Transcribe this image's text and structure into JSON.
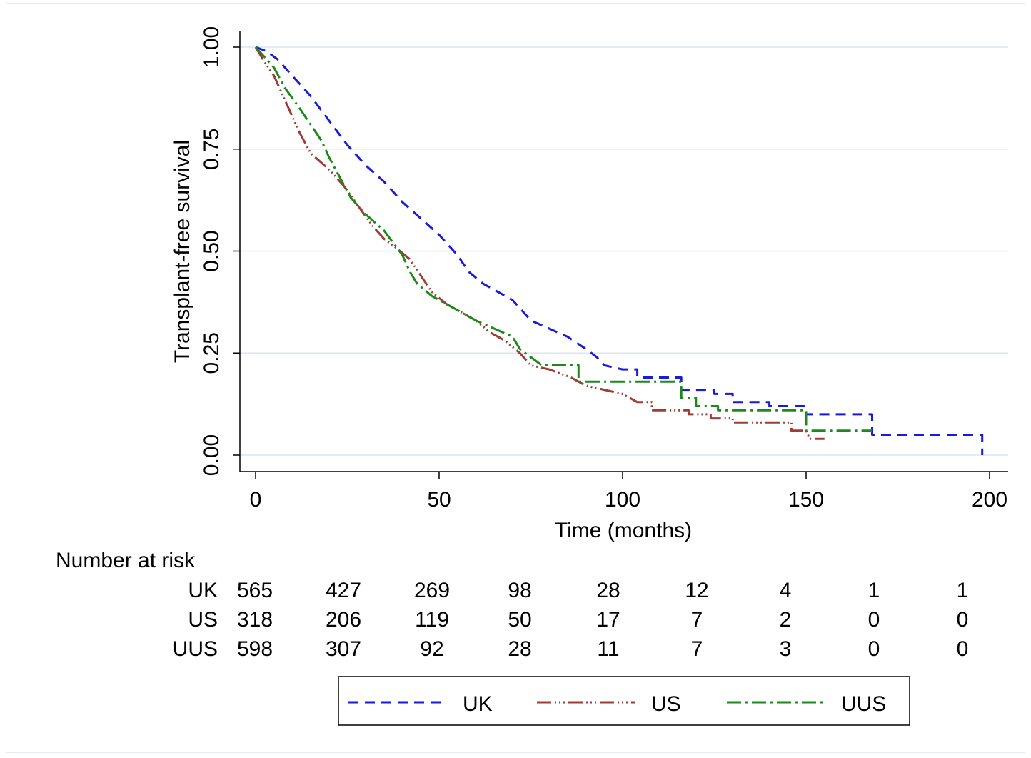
{
  "chart_data": {
    "type": "line",
    "xlabel": "Time (months)",
    "ylabel": "Transplant-free survival",
    "xlim": [
      0,
      200
    ],
    "ylim": [
      0,
      1
    ],
    "x_ticks": [
      "0",
      "50",
      "100",
      "150",
      "200"
    ],
    "y_ticks": [
      "0.00",
      "0.25",
      "0.50",
      "0.75",
      "1.00"
    ],
    "grid": "horizontal",
    "series": [
      {
        "name": "UK",
        "color": "#1a1adb",
        "dash": "dashed",
        "points": [
          [
            0,
            1.0
          ],
          [
            3,
            0.99
          ],
          [
            6,
            0.97
          ],
          [
            10,
            0.93
          ],
          [
            15,
            0.88
          ],
          [
            20,
            0.82
          ],
          [
            25,
            0.76
          ],
          [
            30,
            0.71
          ],
          [
            35,
            0.67
          ],
          [
            40,
            0.62
          ],
          [
            45,
            0.58
          ],
          [
            50,
            0.54
          ],
          [
            55,
            0.49
          ],
          [
            58,
            0.45
          ],
          [
            62,
            0.42
          ],
          [
            66,
            0.4
          ],
          [
            70,
            0.38
          ],
          [
            72,
            0.36
          ],
          [
            75,
            0.33
          ],
          [
            80,
            0.31
          ],
          [
            85,
            0.29
          ],
          [
            90,
            0.26
          ],
          [
            93,
            0.24
          ],
          [
            95,
            0.22
          ],
          [
            100,
            0.21
          ],
          [
            104,
            0.21
          ],
          [
            104,
            0.19
          ],
          [
            116,
            0.19
          ],
          [
            116,
            0.16
          ],
          [
            125,
            0.16
          ],
          [
            125,
            0.15
          ],
          [
            130,
            0.15
          ],
          [
            130,
            0.13
          ],
          [
            140,
            0.13
          ],
          [
            140,
            0.12
          ],
          [
            150,
            0.12
          ],
          [
            150,
            0.1
          ],
          [
            168,
            0.1
          ],
          [
            168,
            0.05
          ],
          [
            198,
            0.05
          ],
          [
            198,
            0.0
          ]
        ]
      },
      {
        "name": "US",
        "color": "#a03c36",
        "dash": "dash-dot-dot",
        "points": [
          [
            0,
            1.0
          ],
          [
            2,
            0.97
          ],
          [
            5,
            0.93
          ],
          [
            8,
            0.87
          ],
          [
            12,
            0.79
          ],
          [
            15,
            0.74
          ],
          [
            20,
            0.7
          ],
          [
            24,
            0.66
          ],
          [
            28,
            0.61
          ],
          [
            32,
            0.56
          ],
          [
            35,
            0.53
          ],
          [
            38,
            0.51
          ],
          [
            42,
            0.48
          ],
          [
            45,
            0.44
          ],
          [
            48,
            0.4
          ],
          [
            52,
            0.37
          ],
          [
            56,
            0.35
          ],
          [
            60,
            0.33
          ],
          [
            64,
            0.3
          ],
          [
            68,
            0.28
          ],
          [
            72,
            0.25
          ],
          [
            75,
            0.22
          ],
          [
            80,
            0.21
          ],
          [
            86,
            0.19
          ],
          [
            90,
            0.17
          ],
          [
            95,
            0.16
          ],
          [
            100,
            0.15
          ],
          [
            104,
            0.13
          ],
          [
            108,
            0.13
          ],
          [
            108,
            0.11
          ],
          [
            118,
            0.11
          ],
          [
            118,
            0.1
          ],
          [
            124,
            0.1
          ],
          [
            124,
            0.09
          ],
          [
            130,
            0.09
          ],
          [
            130,
            0.08
          ],
          [
            146,
            0.08
          ],
          [
            146,
            0.06
          ],
          [
            150,
            0.06
          ],
          [
            151,
            0.04
          ],
          [
            155,
            0.04
          ]
        ]
      },
      {
        "name": "UUS",
        "color": "#1b8a1b",
        "dash": "dash-dot",
        "points": [
          [
            0,
            1.0
          ],
          [
            2,
            0.98
          ],
          [
            5,
            0.95
          ],
          [
            8,
            0.9
          ],
          [
            12,
            0.85
          ],
          [
            15,
            0.81
          ],
          [
            18,
            0.77
          ],
          [
            20,
            0.73
          ],
          [
            23,
            0.68
          ],
          [
            26,
            0.63
          ],
          [
            30,
            0.59
          ],
          [
            35,
            0.55
          ],
          [
            40,
            0.49
          ],
          [
            42,
            0.45
          ],
          [
            44,
            0.42
          ],
          [
            48,
            0.39
          ],
          [
            52,
            0.37
          ],
          [
            56,
            0.35
          ],
          [
            60,
            0.33
          ],
          [
            65,
            0.31
          ],
          [
            70,
            0.29
          ],
          [
            72,
            0.26
          ],
          [
            75,
            0.24
          ],
          [
            78,
            0.22
          ],
          [
            88,
            0.22
          ],
          [
            88,
            0.18
          ],
          [
            116,
            0.18
          ],
          [
            116,
            0.14
          ],
          [
            120,
            0.14
          ],
          [
            120,
            0.12
          ],
          [
            126,
            0.12
          ],
          [
            126,
            0.11
          ],
          [
            140,
            0.11
          ],
          [
            150,
            0.11
          ],
          [
            150,
            0.06
          ],
          [
            168,
            0.06
          ]
        ]
      }
    ]
  },
  "risk_table": {
    "title": "Number at risk",
    "rows": [
      {
        "label": "UK",
        "values": [
          "565",
          "427",
          "269",
          "98",
          "28",
          "12",
          "4",
          "1",
          "1"
        ]
      },
      {
        "label": "US",
        "values": [
          "318",
          "206",
          "119",
          "50",
          "17",
          "7",
          "2",
          "0",
          "0"
        ]
      },
      {
        "label": "UUS",
        "values": [
          "598",
          "307",
          "92",
          "28",
          "11",
          "7",
          "3",
          "0",
          "0"
        ]
      }
    ]
  },
  "legend": {
    "placement": "bottom",
    "items": [
      "UK",
      "US",
      "UUS"
    ]
  }
}
